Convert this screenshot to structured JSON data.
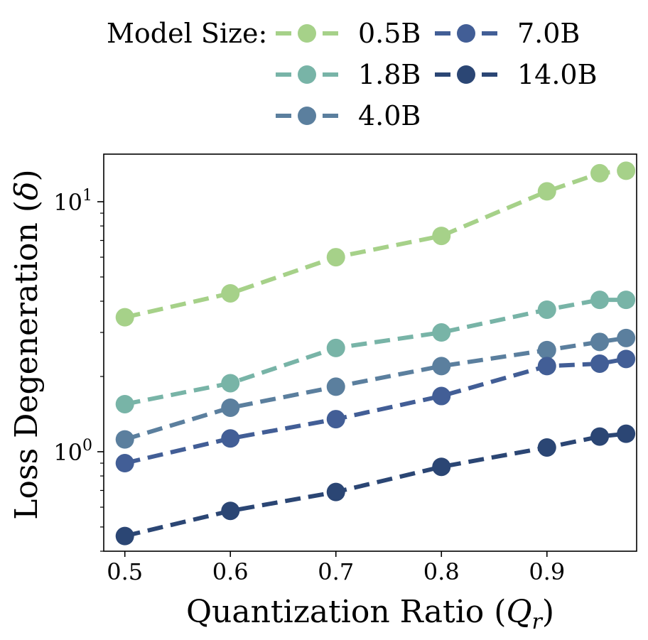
{
  "chart_data": {
    "type": "line",
    "title": "",
    "xlabel": "Quantization Ratio",
    "xlabel_symbol": "Q",
    "xlabel_sub": "r",
    "ylabel": "Loss Degeneration",
    "ylabel_symbol": "δ",
    "x": [
      0.5,
      0.6,
      0.7,
      0.8,
      0.9,
      0.95,
      0.975
    ],
    "xlim": [
      0.48,
      0.985
    ],
    "ylim": [
      0.4,
      15.5
    ],
    "yscale": "log",
    "grid": false,
    "x_ticks": [
      {
        "value": 0.5,
        "label": "0.5"
      },
      {
        "value": 0.6,
        "label": "0.6"
      },
      {
        "value": 0.7,
        "label": "0.7"
      },
      {
        "value": 0.8,
        "label": "0.8"
      },
      {
        "value": 0.9,
        "label": "0.9"
      }
    ],
    "y_ticks_major": [
      {
        "value": 1,
        "base": "10",
        "exp": "0"
      },
      {
        "value": 10,
        "base": "10",
        "exp": "1"
      }
    ],
    "y_ticks_minor": [
      0.4,
      0.5,
      0.6,
      0.7,
      0.8,
      0.9,
      2,
      3,
      4,
      5,
      6,
      7,
      8,
      9
    ],
    "legend": {
      "title": "Model Size:",
      "placement": "top",
      "columns": 2
    },
    "series": [
      {
        "name": "0.5B",
        "color": "#a6d189",
        "values": [
          3.45,
          4.3,
          6.0,
          7.3,
          11.0,
          13.0,
          13.3
        ]
      },
      {
        "name": "1.8B",
        "color": "#78b4a7",
        "values": [
          1.55,
          1.88,
          2.6,
          3.0,
          3.7,
          4.05,
          4.05
        ]
      },
      {
        "name": "4.0B",
        "color": "#5b7f9e",
        "values": [
          1.12,
          1.5,
          1.82,
          2.2,
          2.55,
          2.75,
          2.85
        ]
      },
      {
        "name": "7.0B",
        "color": "#425e96",
        "values": [
          0.9,
          1.13,
          1.35,
          1.67,
          2.2,
          2.25,
          2.35
        ]
      },
      {
        "name": "14.0B",
        "color": "#2b4674",
        "values": [
          0.46,
          0.58,
          0.69,
          0.87,
          1.04,
          1.15,
          1.18
        ]
      }
    ]
  }
}
